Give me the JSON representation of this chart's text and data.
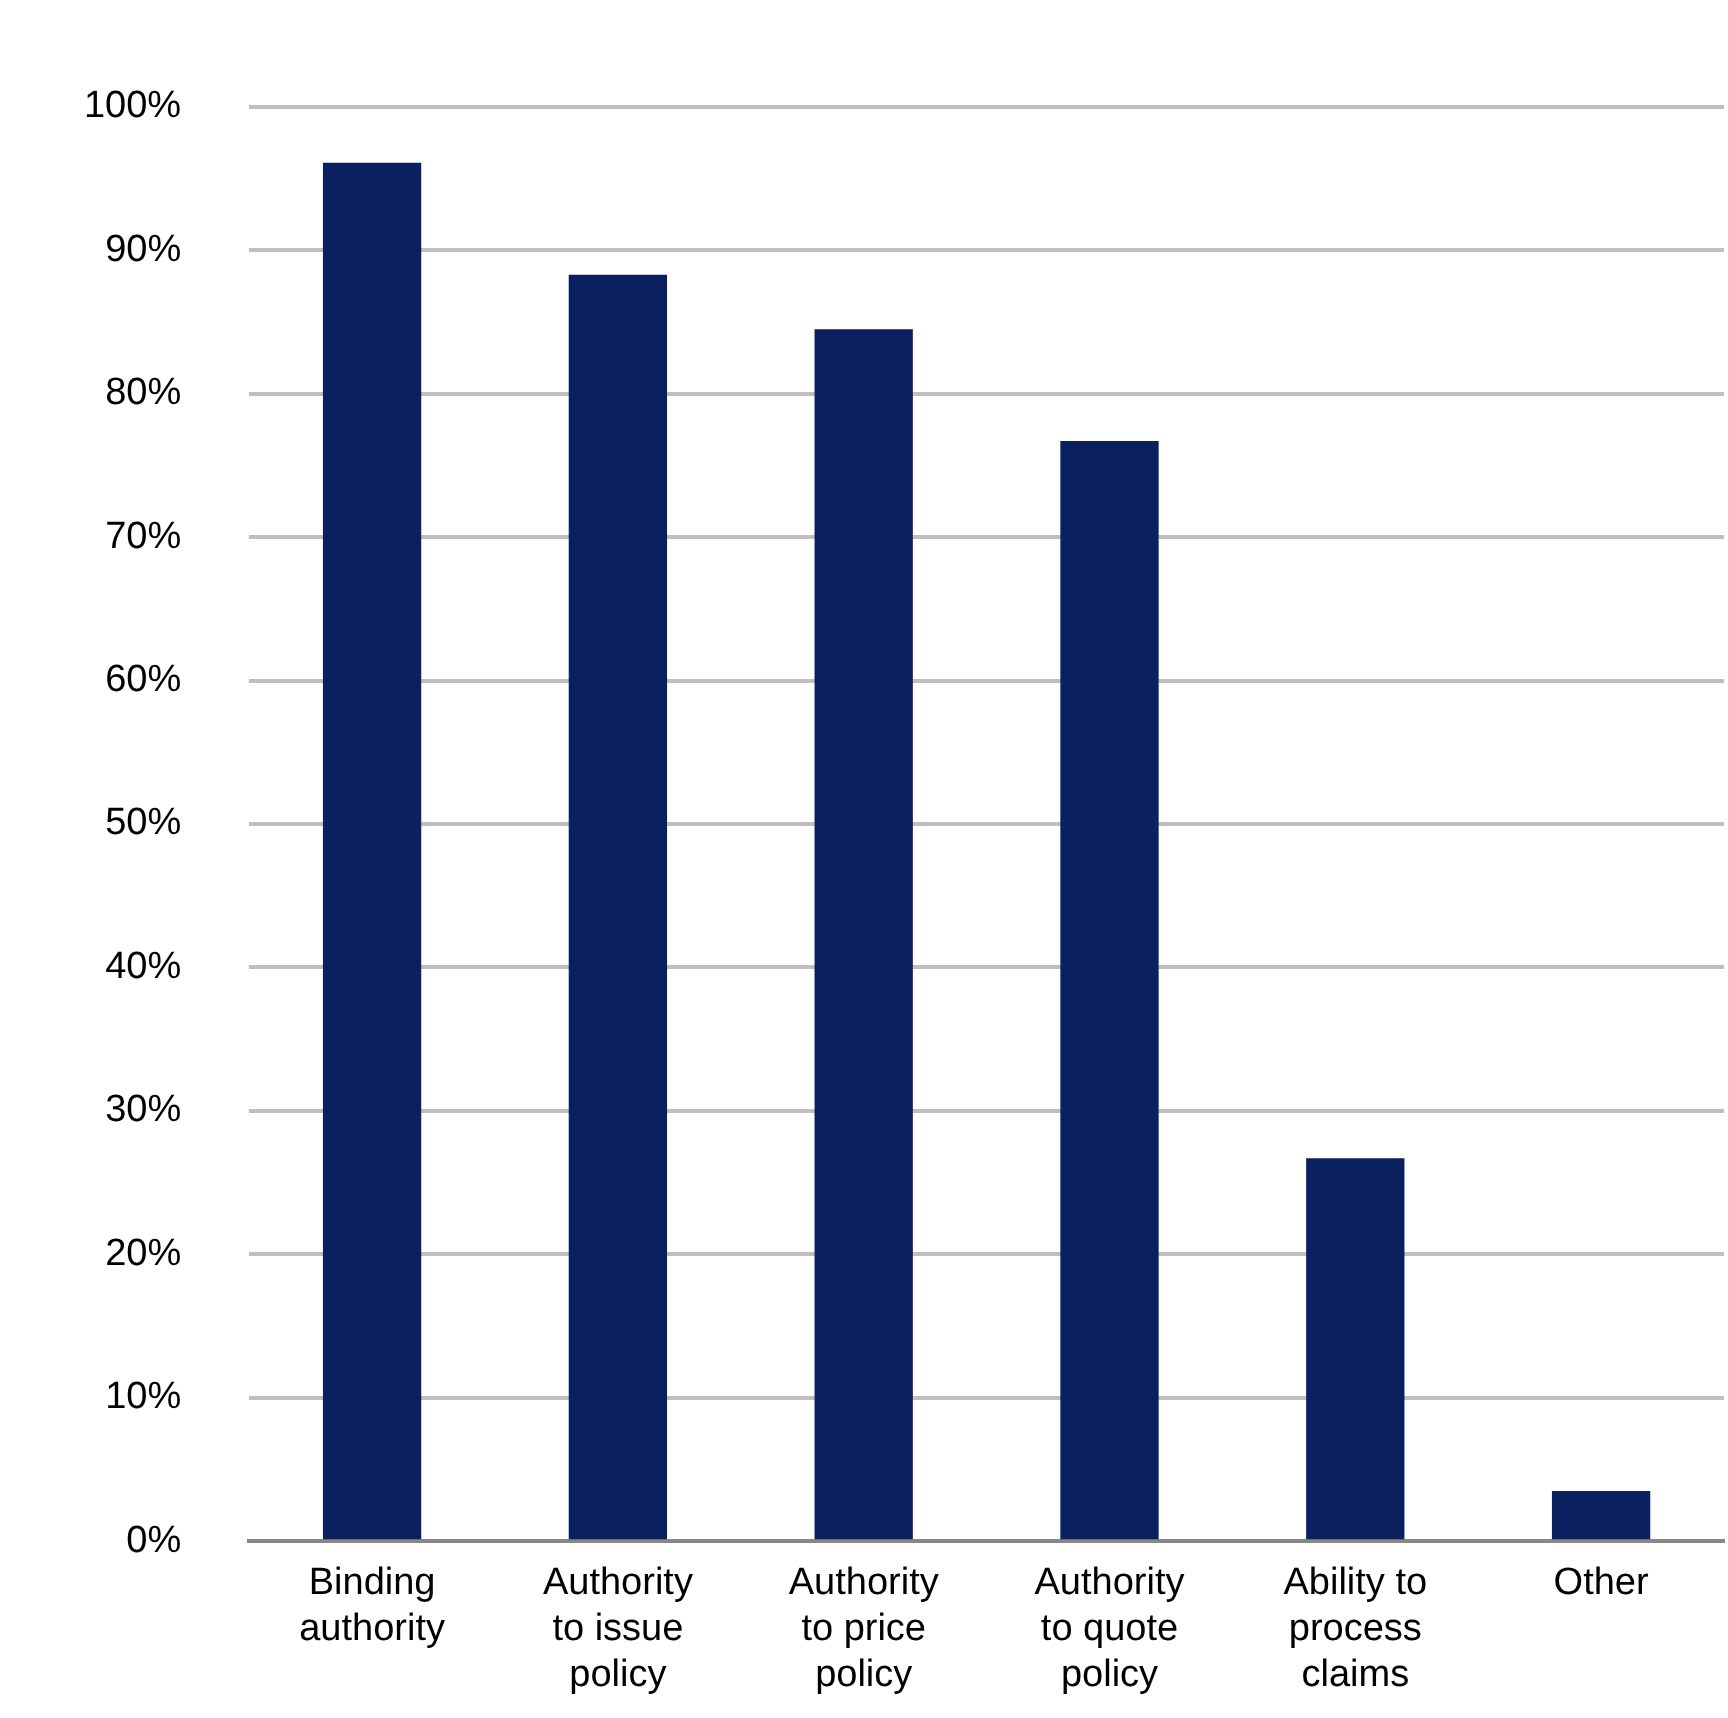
{
  "chart_data": {
    "type": "bar",
    "categories": [
      "Binding authority",
      "Authority to issue policy",
      "Authority to price policy",
      "Authority to quote policy",
      "Ability to process claims",
      "Other"
    ],
    "values": [
      96.1,
      88.3,
      84.5,
      76.7,
      26.7,
      3.5
    ],
    "color": "#0b205f",
    "ylim": [
      0,
      100
    ],
    "yticks": [
      {
        "value": 0,
        "label": "0%"
      },
      {
        "value": 10,
        "label": "10%"
      },
      {
        "value": 20,
        "label": "20%"
      },
      {
        "value": 30,
        "label": "30%"
      },
      {
        "value": 40,
        "label": "40%"
      },
      {
        "value": 50,
        "label": "50%"
      },
      {
        "value": 60,
        "label": "60%"
      },
      {
        "value": 70,
        "label": "70%"
      },
      {
        "value": 80,
        "label": "80%"
      },
      {
        "value": 90,
        "label": "90%"
      },
      {
        "value": 100,
        "label": "100%"
      }
    ],
    "grid": "y",
    "legend": false
  }
}
